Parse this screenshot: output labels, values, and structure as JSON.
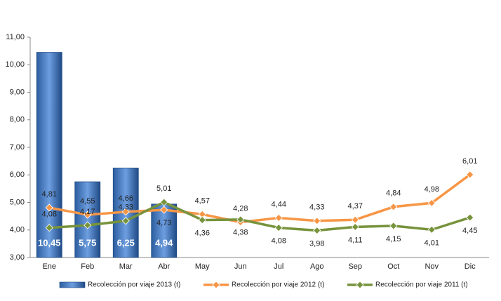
{
  "chart_data": {
    "type": "bar",
    "categories": [
      "Ene",
      "Feb",
      "Mar",
      "Abr",
      "May",
      "Jun",
      "Jul",
      "Ago",
      "Sep",
      "Oct",
      "Nov",
      "Dic"
    ],
    "series": [
      {
        "name": "Recolección por viaje 2013 (t)",
        "type": "bar",
        "color": "#3a6fb5",
        "values": [
          10.45,
          5.75,
          6.25,
          4.94,
          null,
          null,
          null,
          null,
          null,
          null,
          null,
          null
        ],
        "value_labels": [
          "10,45",
          "5,75",
          "6,25",
          "4,94",
          null,
          null,
          null,
          null,
          null,
          null,
          null,
          null
        ]
      },
      {
        "name": "Recolección por viaje 2012 (t)",
        "type": "line",
        "color": "#f79646",
        "values": [
          4.81,
          4.55,
          4.66,
          4.73,
          4.57,
          4.28,
          4.44,
          4.33,
          4.37,
          4.84,
          4.98,
          6.01
        ],
        "value_labels": [
          "4,81",
          "4,55",
          "4,66",
          "4,73",
          "4,57",
          "4,28",
          "4,44",
          "4,33",
          "4,37",
          "4,84",
          "4,98",
          "6,01"
        ]
      },
      {
        "name": "Recolección por viaje 2011 (t)",
        "type": "line",
        "color": "#77933c",
        "values": [
          4.08,
          4.17,
          4.33,
          5.01,
          4.36,
          4.38,
          4.08,
          3.98,
          4.11,
          4.15,
          4.01,
          4.45
        ],
        "value_labels": [
          "4,08",
          "4,17",
          "4,33",
          "5,01",
          "4,36",
          "4,38",
          "4,08",
          "3,98",
          "4,11",
          "4,15",
          "4,01",
          "4,45"
        ]
      }
    ],
    "ylim": [
      3,
      11
    ],
    "yticks": [
      {
        "value": 3,
        "label": "3,00"
      },
      {
        "value": 4,
        "label": "4,00"
      },
      {
        "value": 5,
        "label": "5,00"
      },
      {
        "value": 6,
        "label": "6,00"
      },
      {
        "value": 7,
        "label": "7,00"
      },
      {
        "value": 8,
        "label": "8,00"
      },
      {
        "value": 9,
        "label": "9,00"
      },
      {
        "value": 10,
        "label": "10,00"
      },
      {
        "value": 11,
        "label": "11,00"
      }
    ],
    "grid": false,
    "legend": "bottom"
  }
}
